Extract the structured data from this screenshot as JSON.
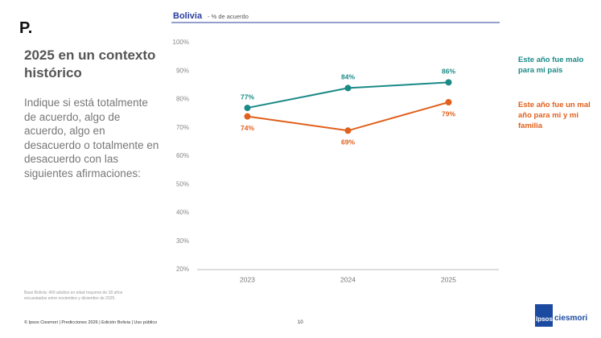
{
  "slide": {
    "marker": "P.",
    "title": "2025 en un contexto histórico",
    "question": "Indique si está totalmente de acuerdo, algo de acuerdo, algo en desacuerdo o totalmente en desacuerdo con las siguientes afirmaciones:",
    "base_note": "Base Bolivia: 400 adultos en edad mayores de 18 años encuestados entre noviembre y diciembre de 2025.",
    "footer": "© Ipsos Ciesmori | Predicciones 2026 | Edición Bolivia | Uso público",
    "page_number": "10",
    "logo_left": "Ipsos",
    "logo_right": "ciesmori"
  },
  "chart_data": {
    "type": "line",
    "title": "Bolivia",
    "subtitle": "- % de acuerdo",
    "categories": [
      "2023",
      "2024",
      "2025"
    ],
    "series": [
      {
        "name": "Este año fue malo para mi país",
        "color": "#1a8a87",
        "values": [
          77,
          84,
          86
        ],
        "value_labels": [
          "77%",
          "84%",
          "86%"
        ]
      },
      {
        "name": "Este año fue un mal año para mi y mi familia",
        "color": "#e0601c",
        "values": [
          74,
          69,
          79
        ],
        "value_labels": [
          "74%",
          "69%",
          "79%"
        ]
      }
    ],
    "ylim": [
      20,
      100
    ],
    "yticks": [
      {
        "value": 20,
        "label": "20%"
      },
      {
        "value": 30,
        "label": "30%"
      },
      {
        "value": 40,
        "label": "40%"
      },
      {
        "value": 50,
        "label": "50%"
      },
      {
        "value": 60,
        "label": "60%"
      },
      {
        "value": 70,
        "label": "70%"
      },
      {
        "value": 80,
        "label": "80%"
      },
      {
        "value": 90,
        "label": "90%"
      },
      {
        "value": 100,
        "label": "100%"
      }
    ],
    "grid": false
  }
}
